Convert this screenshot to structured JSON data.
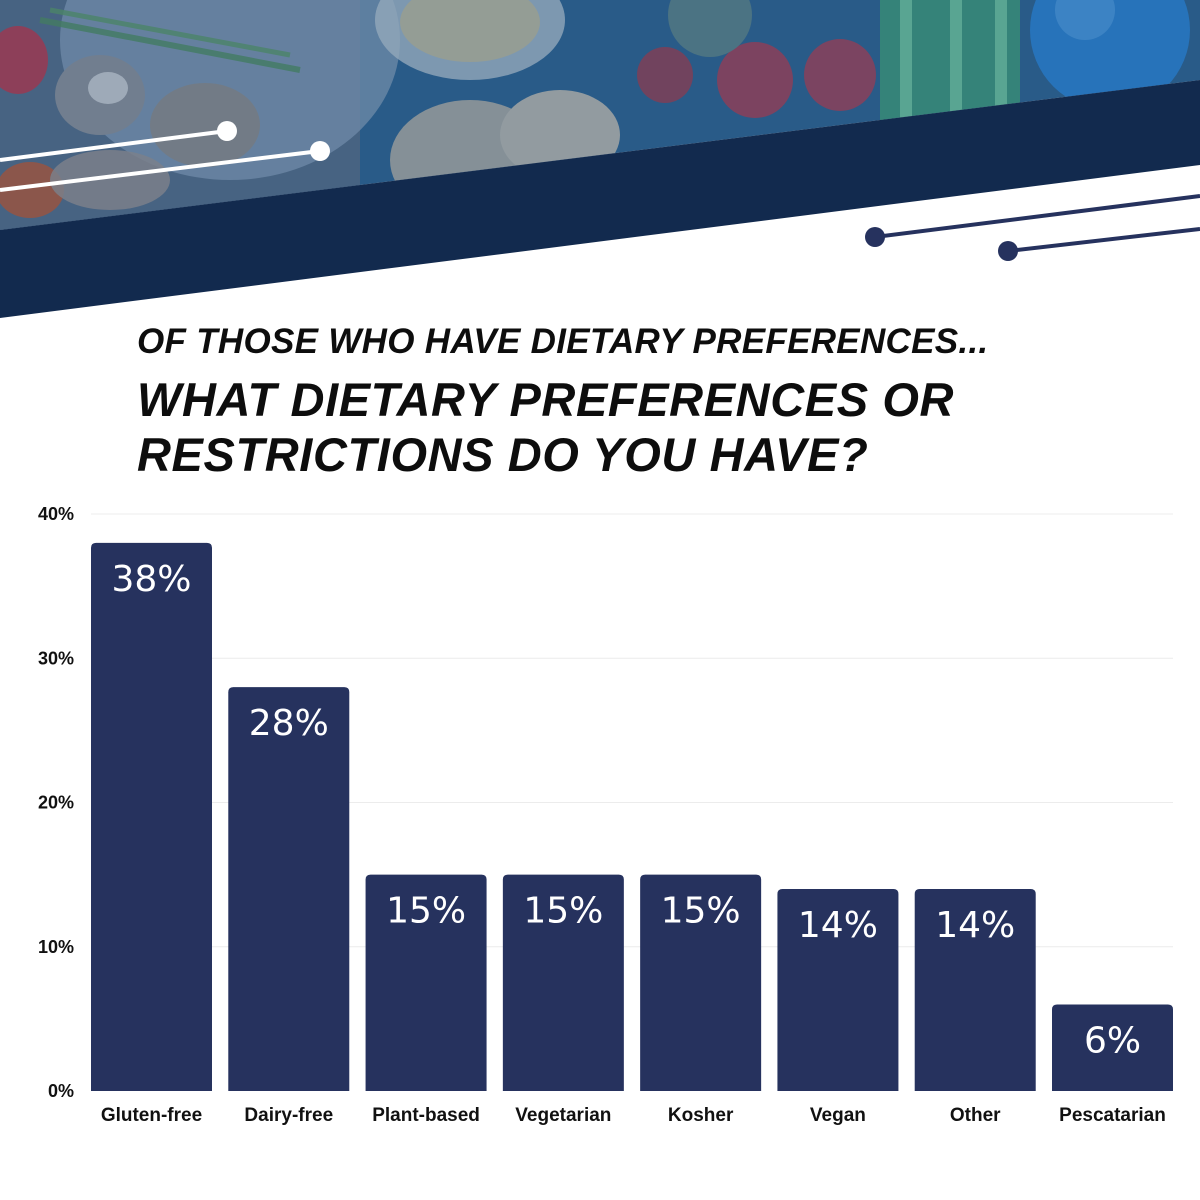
{
  "title": {
    "line1": "OF THOSE WHO HAVE DIETARY PREFERENCES...",
    "line2": "WHAT DIETARY PREFERENCES OR",
    "line3": "RESTRICTIONS DO YOU HAVE?"
  },
  "colors": {
    "bar": "#26325e",
    "navy_band": "#122a4e",
    "photo_overlay": "#1f4f7a",
    "gridline": "#ececec"
  },
  "chart_data": {
    "type": "bar",
    "title": "WHAT DIETARY PREFERENCES OR RESTRICTIONS DO YOU HAVE?",
    "categories": [
      "Gluten-free",
      "Dairy-free",
      "Plant-based",
      "Vegetarian",
      "Kosher",
      "Vegan",
      "Other",
      "Pescatarian"
    ],
    "values": [
      38,
      28,
      15,
      15,
      15,
      14,
      14,
      6
    ],
    "data_labels": [
      "38%",
      "28%",
      "15%",
      "15%",
      "15%",
      "14%",
      "14%",
      "6%"
    ],
    "ylim": [
      0,
      40
    ],
    "yticks": [
      0,
      10,
      20,
      30,
      40
    ],
    "ytick_labels": [
      "0%",
      "10%",
      "20%",
      "30%",
      "40%"
    ],
    "xlabel": "",
    "ylabel": "",
    "grid": true,
    "legend": "none"
  }
}
